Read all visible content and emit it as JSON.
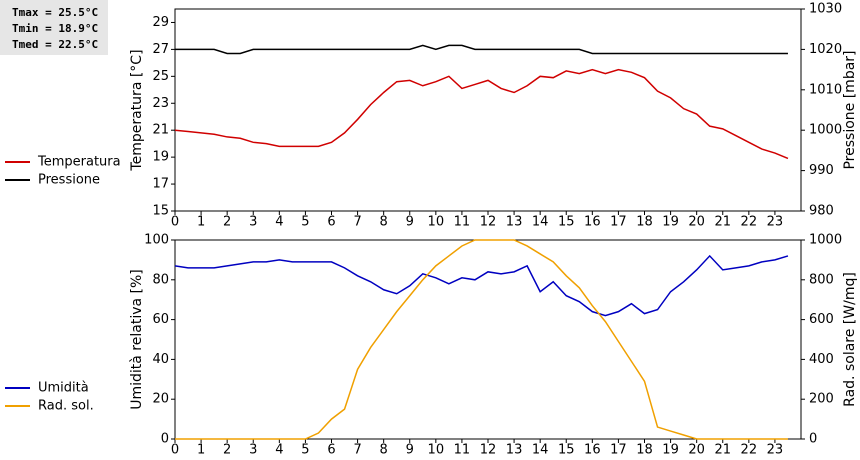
{
  "stats": [
    "Tmax = 25.5°C",
    "Tmin = 18.9°C",
    "Tmed = 22.5°C"
  ],
  "chart_data": [
    {
      "type": "line",
      "y_label": "Temperatura [°C]",
      "y2_label": "Pressione [mbar]",
      "legend": "left",
      "grid": false,
      "x": [
        0,
        0.5,
        1,
        1.5,
        2,
        2.5,
        3,
        3.5,
        4,
        4.5,
        5,
        5.5,
        6,
        6.5,
        7,
        7.5,
        8,
        8.5,
        9,
        9.5,
        10,
        10.5,
        11,
        11.5,
        12,
        12.5,
        13,
        13.5,
        14,
        14.5,
        15,
        15.5,
        16,
        16.5,
        17,
        17.5,
        18,
        18.5,
        19,
        19.5,
        20,
        20.5,
        21,
        21.5,
        22,
        22.5,
        23,
        23.5
      ],
      "xlim": [
        0,
        24
      ],
      "xticks": [
        0,
        1,
        2,
        3,
        4,
        5,
        6,
        7,
        8,
        9,
        10,
        11,
        12,
        13,
        14,
        15,
        16,
        17,
        18,
        19,
        20,
        21,
        22,
        23
      ],
      "ylim": [
        15,
        30
      ],
      "yticks": [
        15,
        17,
        19,
        21,
        23,
        25,
        27,
        29
      ],
      "y2lim": [
        980,
        1030
      ],
      "y2ticks": [
        980,
        990,
        1000,
        1010,
        1020,
        1030
      ],
      "series": [
        {
          "name": "Temperatura",
          "color": "#d00000",
          "values": [
            21.0,
            20.9,
            20.8,
            20.7,
            20.5,
            20.4,
            20.1,
            20.0,
            19.8,
            19.8,
            19.8,
            19.8,
            20.1,
            20.8,
            21.8,
            22.9,
            23.8,
            24.6,
            24.7,
            24.3,
            24.6,
            25.0,
            24.1,
            24.4,
            24.7,
            24.1,
            23.8,
            24.3,
            25.0,
            24.9,
            25.4,
            25.2,
            25.5,
            25.2,
            25.5,
            25.3,
            24.9,
            23.9,
            23.4,
            22.6,
            22.2,
            21.3,
            21.1,
            20.6,
            20.1,
            19.6,
            19.3,
            18.9
          ]
        },
        {
          "name": "Pressione",
          "color": "#000000",
          "axis": "y2",
          "values": [
            1020,
            1020,
            1020,
            1020,
            1019,
            1019,
            1020,
            1020,
            1020,
            1020,
            1020,
            1020,
            1020,
            1020,
            1020,
            1020,
            1020,
            1020,
            1020,
            1021,
            1020,
            1021,
            1021,
            1020,
            1020,
            1020,
            1020,
            1020,
            1020,
            1020,
            1020,
            1020,
            1019,
            1019,
            1019,
            1019,
            1019,
            1019,
            1019,
            1019,
            1019,
            1019,
            1019,
            1019,
            1019,
            1019,
            1019,
            1019
          ]
        }
      ]
    },
    {
      "type": "line",
      "y_label": "Umidità relativa [%]",
      "y2_label": "Rad. solare [W/mq]",
      "legend": "left",
      "grid": false,
      "x": [
        0,
        0.5,
        1,
        1.5,
        2,
        2.5,
        3,
        3.5,
        4,
        4.5,
        5,
        5.5,
        6,
        6.5,
        7,
        7.5,
        8,
        8.5,
        9,
        9.5,
        10,
        10.5,
        11,
        11.5,
        12,
        12.5,
        13,
        13.5,
        14,
        14.5,
        15,
        15.5,
        16,
        16.5,
        17,
        17.5,
        18,
        18.5,
        19,
        19.5,
        20,
        20.5,
        21,
        21.5,
        22,
        22.5,
        23,
        23.5
      ],
      "xlim": [
        0,
        24
      ],
      "xticks": [
        0,
        1,
        2,
        3,
        4,
        5,
        6,
        7,
        8,
        9,
        10,
        11,
        12,
        13,
        14,
        15,
        16,
        17,
        18,
        19,
        20,
        21,
        22,
        23
      ],
      "ylim": [
        0,
        100
      ],
      "yticks": [
        0,
        20,
        40,
        60,
        80,
        100
      ],
      "y2lim": [
        0,
        1000
      ],
      "y2ticks": [
        0,
        200,
        400,
        600,
        800,
        1000
      ],
      "series": [
        {
          "name": "Umidità",
          "color": "#0000c0",
          "values": [
            87,
            86,
            86,
            86,
            87,
            88,
            89,
            89,
            90,
            89,
            89,
            89,
            89,
            86,
            82,
            79,
            75,
            73,
            77,
            83,
            81,
            78,
            81,
            80,
            84,
            83,
            84,
            87,
            74,
            79,
            72,
            69,
            64,
            62,
            64,
            68,
            63,
            65,
            74,
            79,
            85,
            92,
            85,
            86,
            87,
            89,
            90,
            92
          ]
        },
        {
          "name": "Rad. sol.",
          "color": "#f0a000",
          "axis": "y2",
          "values": [
            0,
            0,
            0,
            0,
            0,
            0,
            0,
            0,
            0,
            0,
            0,
            30,
            100,
            150,
            350,
            460,
            550,
            640,
            720,
            800,
            870,
            920,
            970,
            1000,
            1000,
            1000,
            1000,
            970,
            930,
            890,
            820,
            760,
            670,
            590,
            490,
            390,
            290,
            60,
            40,
            20,
            0,
            0,
            0,
            0,
            0,
            0,
            0,
            0
          ]
        }
      ]
    }
  ]
}
